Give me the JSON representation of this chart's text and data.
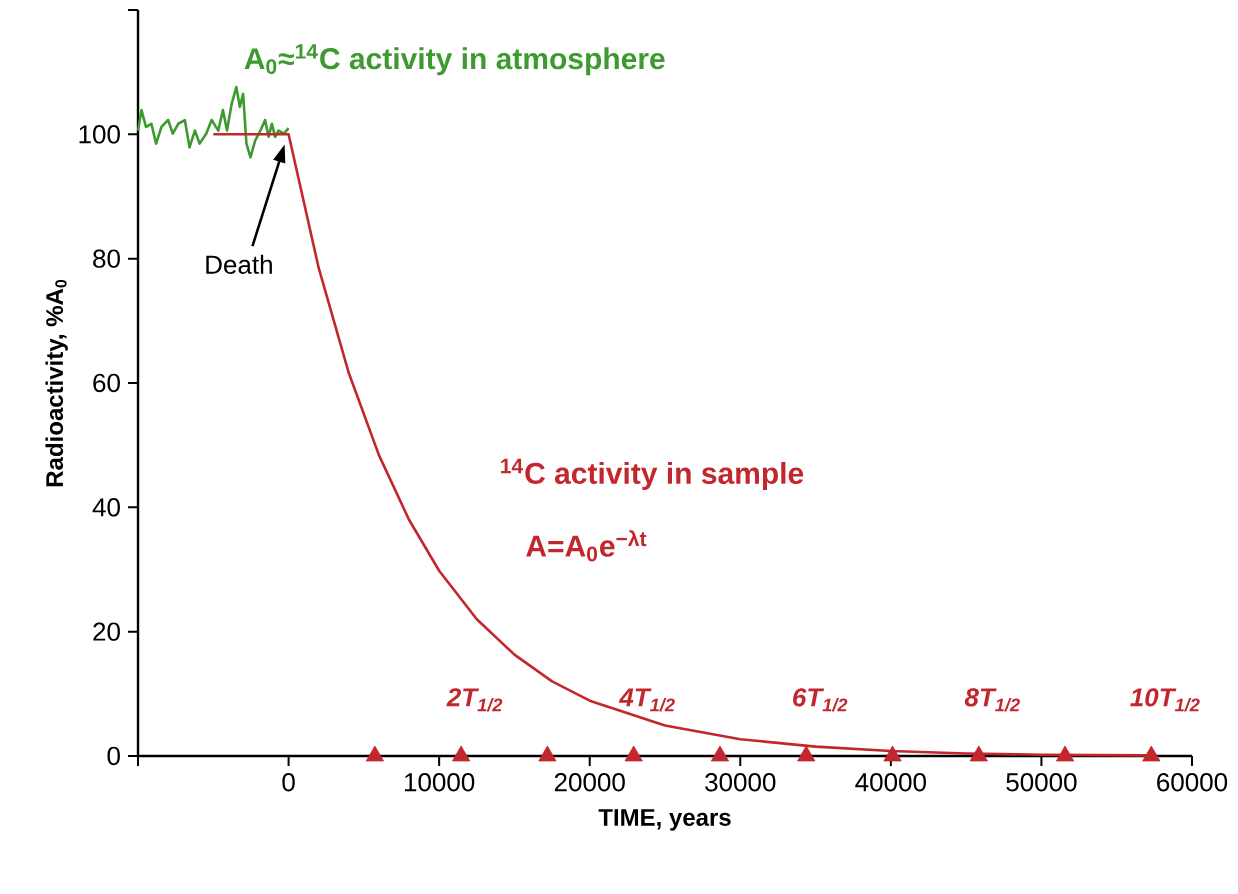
{
  "chart_data": {
    "type": "line",
    "xlabel": "TIME, years",
    "ylabel": "Radioactivity, %A$_{0}$",
    "xlim": [
      -10000,
      60000
    ],
    "xticks": [
      {
        "value": -10000,
        "label": null
      },
      0,
      10000,
      20000,
      30000,
      40000,
      50000,
      60000
    ],
    "ylim": [
      0,
      120
    ],
    "yticks": [
      0,
      20,
      40,
      60,
      80,
      100,
      {
        "value": 120,
        "label": null
      }
    ],
    "grid": false,
    "series": [
      {
        "color": "#3c9a2e",
        "x": [
          -10000,
          -9770,
          -9470,
          -9110,
          -8800,
          -8440,
          -8000,
          -7690,
          -7330,
          -6890,
          -6580,
          -6220,
          -5910,
          -5470,
          -5110,
          -4670,
          -4360,
          -4090,
          -3780,
          -3470,
          -3240,
          -3020,
          -2800,
          -2530,
          -2220,
          -1870,
          -1560,
          -1330,
          -1110,
          -890,
          -670,
          -310,
          0
        ],
        "values": [
          100.6,
          103.9,
          101.2,
          101.7,
          98.5,
          101.2,
          102.3,
          100.1,
          101.7,
          102.3,
          97.9,
          100.6,
          98.5,
          100.1,
          102.3,
          100.6,
          103.9,
          100.6,
          104.9,
          107.6,
          104.4,
          106.5,
          98.5,
          96.3,
          99.0,
          100.6,
          102.3,
          99.6,
          101.7,
          99.6,
          100.6,
          100.1,
          101.0
        ]
      },
      {
        "color": "#c1272d",
        "x": [
          -5000,
          0,
          2000,
          4000,
          6000,
          8000,
          10000,
          12500,
          15000,
          17500,
          20000,
          25000,
          30000,
          35000,
          40000,
          45000,
          50000,
          57000
        ],
        "values": [
          100,
          100,
          78.5,
          61.6,
          48.4,
          38.0,
          29.8,
          22.0,
          16.3,
          12.0,
          8.9,
          4.9,
          2.7,
          1.5,
          0.8,
          0.4,
          0.2,
          0.1
        ]
      },
      {
        "type": "scatter",
        "marker": "triangle",
        "color": "#c1272d",
        "x": [
          5730,
          11460,
          17190,
          22920,
          28650,
          34380,
          40110,
          45840,
          51570,
          57300
        ],
        "values": [
          0,
          0,
          0,
          0,
          0,
          0,
          0,
          0,
          0,
          0
        ]
      }
    ],
    "annotations": [
      "A$_{0}$≈$^{14}$C activity in atmosphere",
      "Death",
      "$^{14}$C activity in sample",
      "A=A$_{0}$e$^{−λt}$",
      {
        "text": "2T$_{1/2}$",
        "x": 11460,
        "y": 0
      },
      {
        "text": "4T$_{1/2}$",
        "x": 22920,
        "y": 0
      },
      {
        "text": "6T$_{1/2}$",
        "x": 34380,
        "y": 0
      },
      {
        "text": "8T$_{1/2}$",
        "x": 45840,
        "y": 0
      },
      {
        "text": "10T$_{1/2}$",
        "x": 57300,
        "y": 0
      }
    ]
  }
}
